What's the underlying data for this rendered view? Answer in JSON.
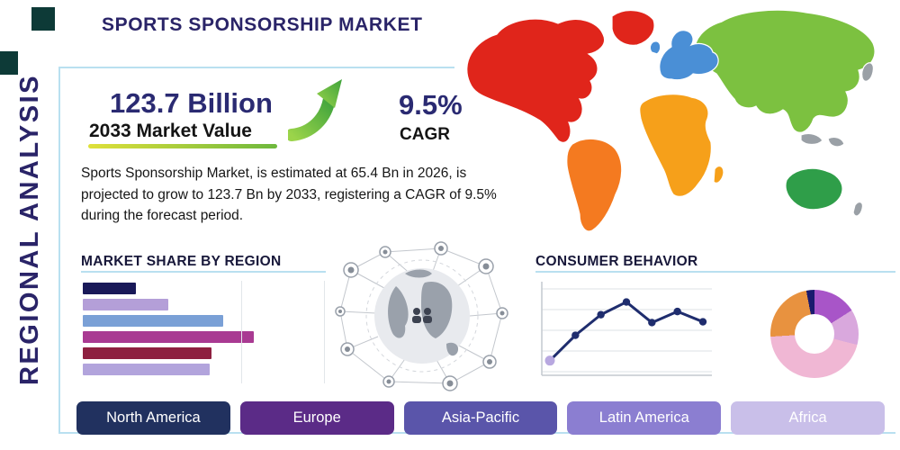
{
  "header": {
    "title": "SPORTS SPONSORSHIP MARKET"
  },
  "side_label": "REGIONAL ANALYSIS",
  "stats": {
    "market_value": "123.7 Billion",
    "market_value_label": "2033 Market Value",
    "cagr_value": "9.5%",
    "cagr_label": "CAGR"
  },
  "description": "Sports Sponsorship Market, is estimated at 65.4 Bn in 2026, is projected to grow to 123.7 Bn by 2033, registering a CAGR of 9.5% during the forecast period.",
  "colors": {
    "navy_accent": "#2a2a72",
    "frame_blue": "#b9e0f0",
    "decor_square_teal": "#0d3a37",
    "arrow_green": "#6db83d",
    "highlight_yellow_green": "#dfe03a"
  },
  "icons": {
    "growth_arrow": "growth-arrow-icon",
    "globe_network": "globe-network-graphic"
  },
  "map": {
    "regions": [
      {
        "name": "north-america",
        "color": "#e0251b"
      },
      {
        "name": "greenland",
        "color": "#e0251b"
      },
      {
        "name": "south-america",
        "color": "#f47a20"
      },
      {
        "name": "europe",
        "color": "#4a8fd6"
      },
      {
        "name": "united-kingdom",
        "color": "#4a8fd6"
      },
      {
        "name": "africa",
        "color": "#f6a01a"
      },
      {
        "name": "madagascar",
        "color": "#f6a01a"
      },
      {
        "name": "asia",
        "color": "#7cc140"
      },
      {
        "name": "australia",
        "color": "#2f9e49"
      },
      {
        "name": "japan",
        "color": "#9aa0a6"
      },
      {
        "name": "indonesia",
        "color": "#9aa0a6"
      },
      {
        "name": "new-zealand",
        "color": "#9aa0a6"
      }
    ]
  },
  "market_share": {
    "title": "MARKET SHARE BY REGION"
  },
  "consumer_behavior": {
    "title": "CONSUMER BEHAVIOR"
  },
  "region_buttons": [
    {
      "label": "North America",
      "bg": "#21315f",
      "text_color": "#ffffff"
    },
    {
      "label": "Europe",
      "bg": "#5b2b87",
      "text_color": "#ffffff"
    },
    {
      "label": "Asia-Pacific",
      "bg": "#5a55aa",
      "text_color": "#ffffff"
    },
    {
      "label": "Latin America",
      "bg": "#8b7ed1",
      "text_color": "#ffffff"
    },
    {
      "label": "Africa",
      "bg": "#c9bfe9",
      "text_color": "#ffffff"
    }
  ],
  "chart_data": [
    {
      "id": "market_share_by_region",
      "type": "bar",
      "orientation": "horizontal",
      "title": "MARKET SHARE BY REGION",
      "values": [
        31,
        50,
        82,
        100,
        75,
        74
      ],
      "xlim": [
        0,
        100
      ],
      "colors": [
        "#191958",
        "#b49fd8",
        "#7aa0d6",
        "#a93a92",
        "#8e2040",
        "#b2a4dc"
      ],
      "grid": true
    },
    {
      "id": "consumer_behavior_trend",
      "type": "line",
      "title": "CONSUMER BEHAVIOR",
      "x": [
        1,
        2,
        3,
        4,
        5,
        6,
        7
      ],
      "values": [
        14,
        46,
        72,
        88,
        62,
        76,
        63
      ],
      "ylim": [
        0,
        100
      ],
      "color": "#1f2d6e",
      "marker": "circle",
      "first_marker_color": "#b8a8e0",
      "grid": true,
      "legend_position": "none"
    },
    {
      "id": "regional_donut",
      "type": "pie",
      "donut": true,
      "slices": [
        {
          "label": "violet",
          "value": 16,
          "color": "#a855c8"
        },
        {
          "label": "lavender",
          "value": 13,
          "color": "#d9a8dd"
        },
        {
          "label": "pink",
          "value": 45,
          "color": "#f0b7d4"
        },
        {
          "label": "orange",
          "value": 23,
          "color": "#e8923f"
        },
        {
          "label": "navy",
          "value": 3,
          "color": "#1a1a6e"
        }
      ]
    }
  ]
}
